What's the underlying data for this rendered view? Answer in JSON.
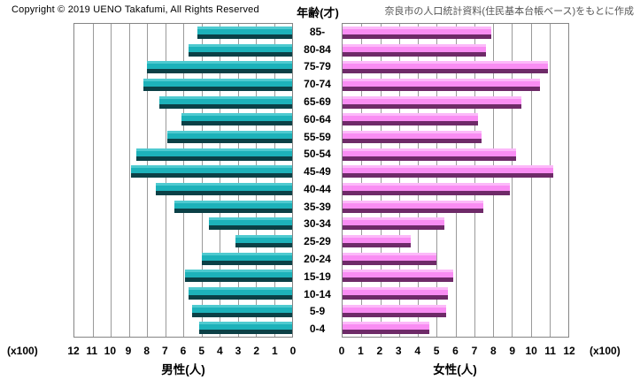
{
  "header": {
    "copyright": "Copyright © 2019 UENO Takafumi, All Rights Reserved",
    "age_axis_title": "年齢(才)",
    "source_note": "奈良市の人口統計資料(住民基本台帳ベース)をもとに作成"
  },
  "axes": {
    "unit_label": "(x100)",
    "male_tick_labels": [
      12,
      11,
      10,
      9,
      8,
      7,
      6,
      5,
      4,
      3,
      2,
      1,
      0
    ],
    "female_tick_labels": [
      0,
      1,
      2,
      3,
      4,
      5,
      6,
      7,
      8,
      9,
      10,
      11,
      12
    ]
  },
  "chart_data": {
    "type": "bar",
    "variant": "population-pyramid",
    "title": "年齢(才)",
    "unit": "x100 人",
    "xlim": [
      0,
      12
    ],
    "grid": true,
    "categories_top_to_bottom": [
      "85-",
      "80-84",
      "75-79",
      "70-74",
      "65-69",
      "60-64",
      "55-59",
      "50-54",
      "45-49",
      "40-44",
      "35-39",
      "30-34",
      "25-29",
      "20-24",
      "15-19",
      "10-14",
      "5-9",
      "0-4"
    ],
    "series": [
      {
        "name": "男性(人)",
        "side": "left",
        "values_x100": [
          5.2,
          5.7,
          8.0,
          8.2,
          7.3,
          6.1,
          6.9,
          8.6,
          8.9,
          7.5,
          6.5,
          4.6,
          3.1,
          5.0,
          5.9,
          5.7,
          5.5,
          5.1
        ]
      },
      {
        "name": "女性(人)",
        "side": "right",
        "values_x100": [
          7.9,
          7.6,
          10.9,
          10.5,
          9.5,
          7.2,
          7.4,
          9.2,
          11.2,
          8.9,
          7.5,
          5.4,
          3.6,
          5.0,
          5.9,
          5.6,
          5.5,
          4.6
        ]
      }
    ],
    "colors": {
      "male": {
        "highlight": "#4fcad0",
        "main": "#1db2ba",
        "shadow": "#0b4046"
      },
      "female": {
        "highlight": "#fcb9f9",
        "main": "#f98df3",
        "shadow": "#6e2a68"
      },
      "gridline": "#9a9a9a",
      "plot_border": "#858585"
    }
  }
}
